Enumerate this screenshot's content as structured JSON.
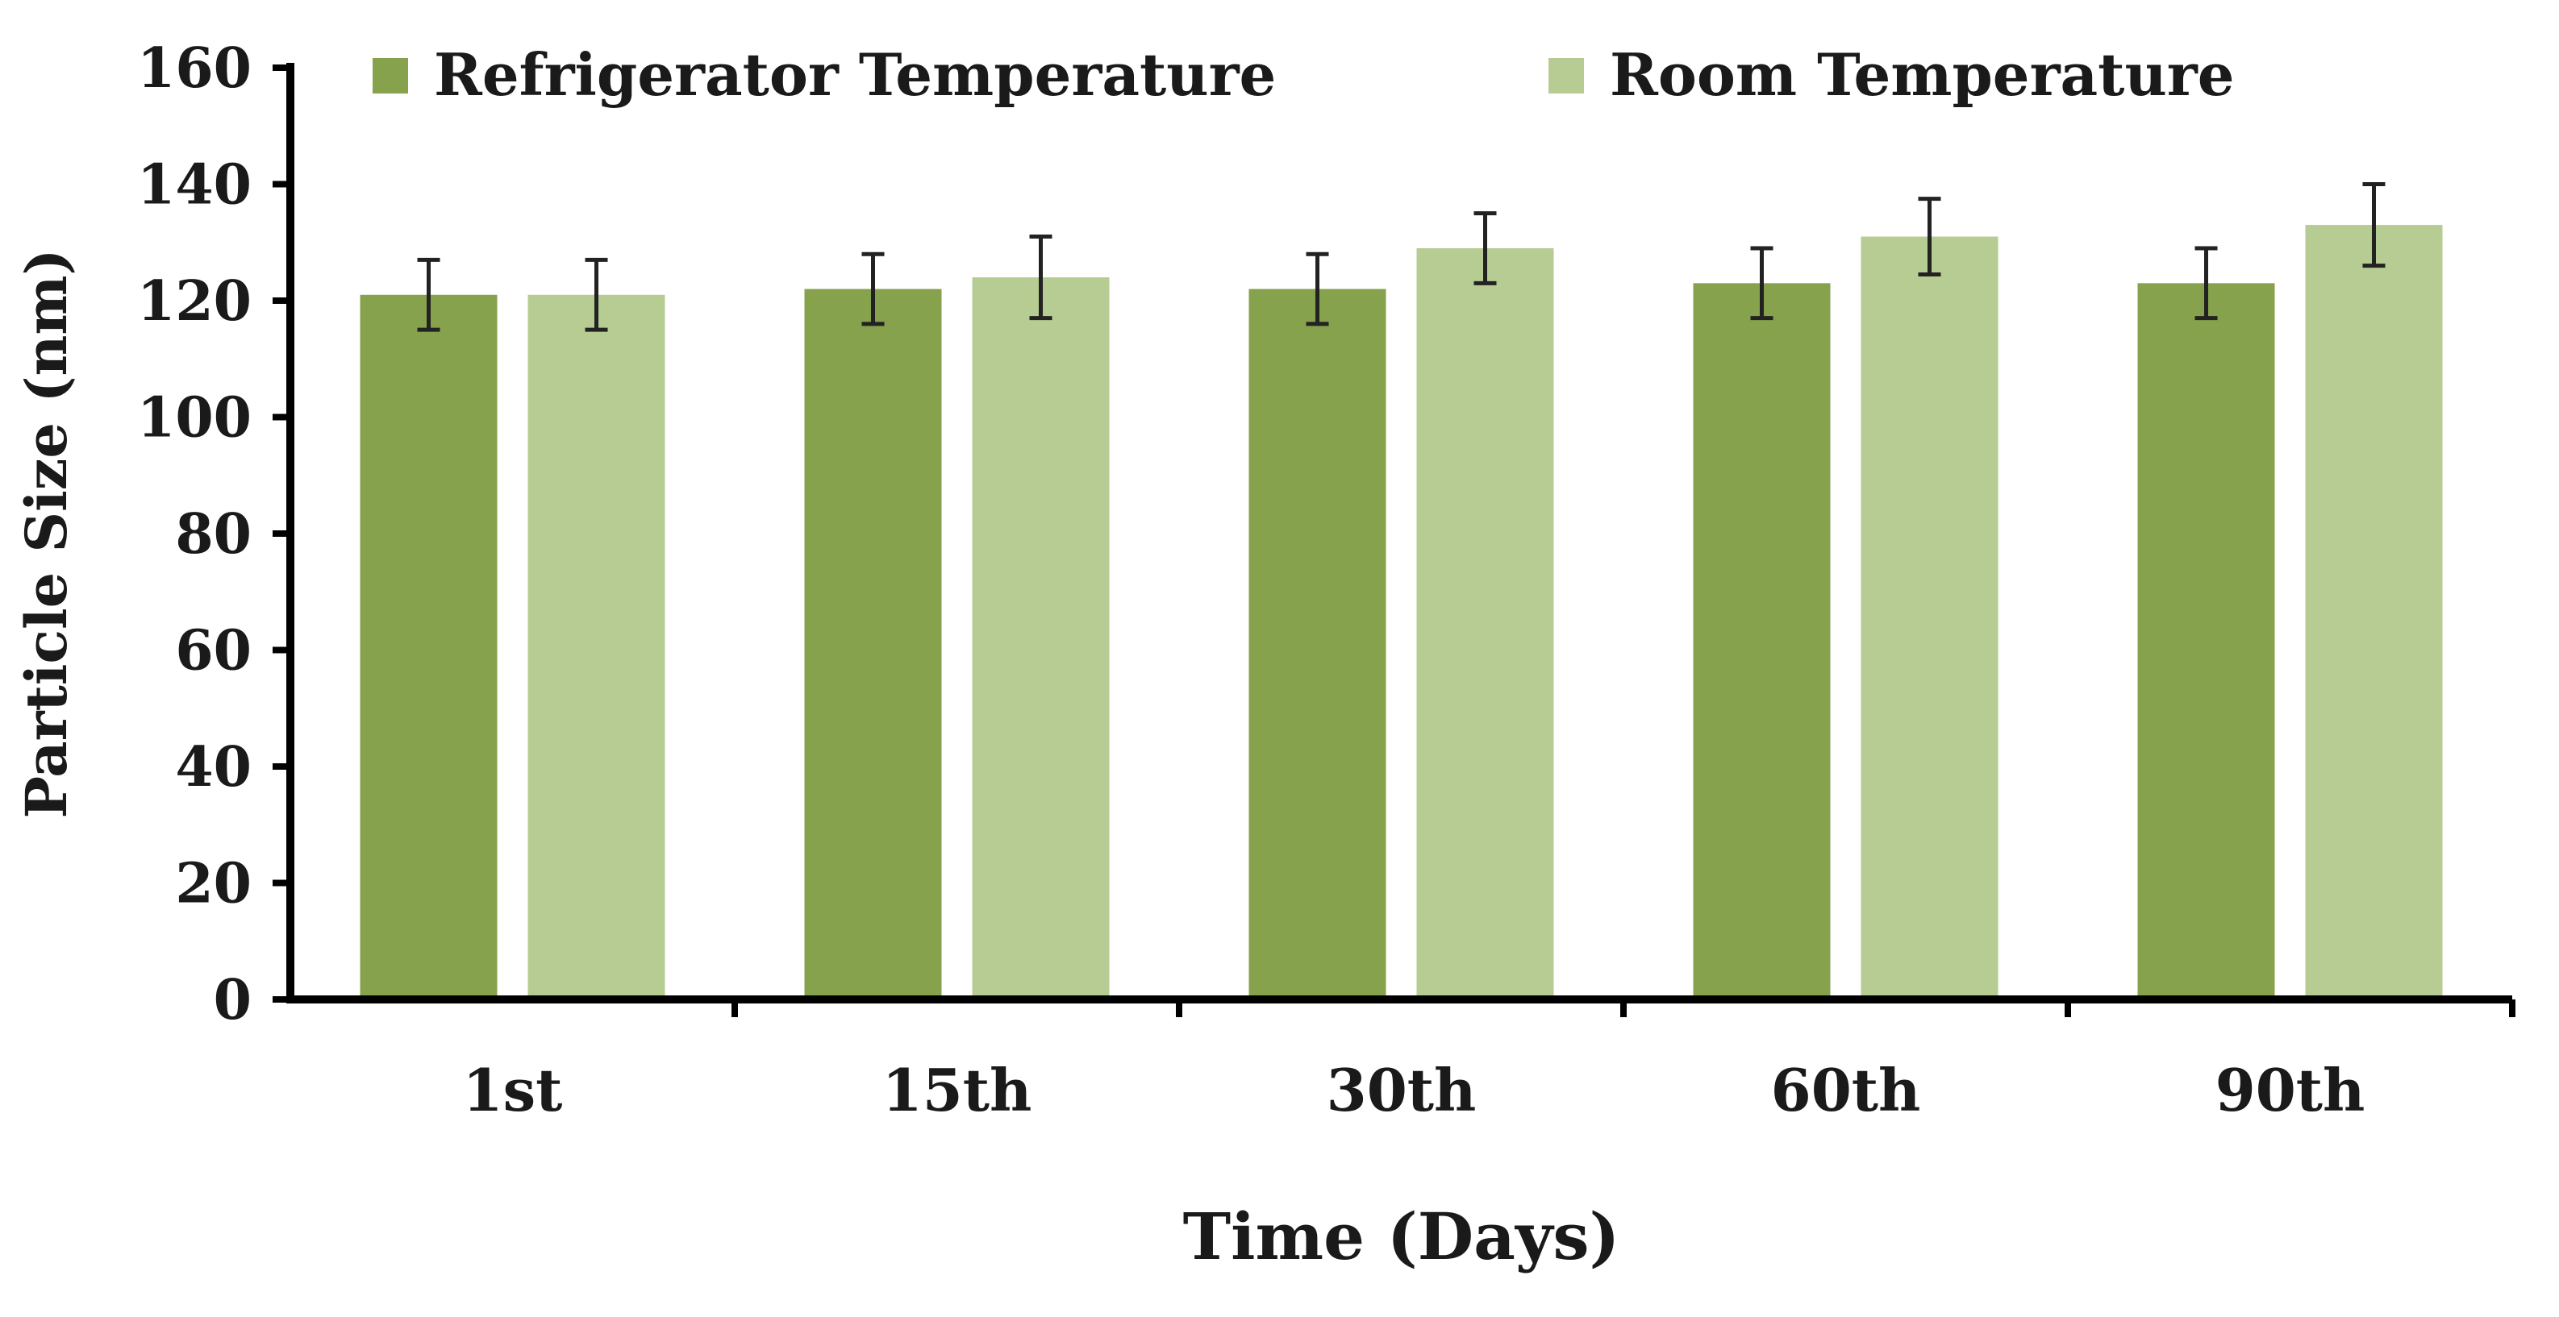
{
  "chart_data": {
    "type": "bar",
    "title": "",
    "xlabel": "Time (Days)",
    "ylabel": "Particle Size (nm)",
    "categories": [
      "1st",
      "15th",
      "30th",
      "60th",
      "90th"
    ],
    "series": [
      {
        "name": "Refrigerator Temperature",
        "color": "#87a24c",
        "values": [
          121,
          122,
          122,
          123,
          123
        ],
        "errors": [
          6,
          6,
          6,
          6,
          6
        ]
      },
      {
        "name": "Room Temperature",
        "color": "#b6cc92",
        "values": [
          121,
          124,
          129,
          131,
          133
        ],
        "errors": [
          6,
          7,
          6,
          6.5,
          7
        ]
      }
    ],
    "ylim": [
      0,
      160
    ],
    "yticks": [
      "0",
      "20",
      "40",
      "60",
      "80",
      "100",
      "120",
      "140",
      "160"
    ],
    "grid": false,
    "legend_position": "top"
  }
}
